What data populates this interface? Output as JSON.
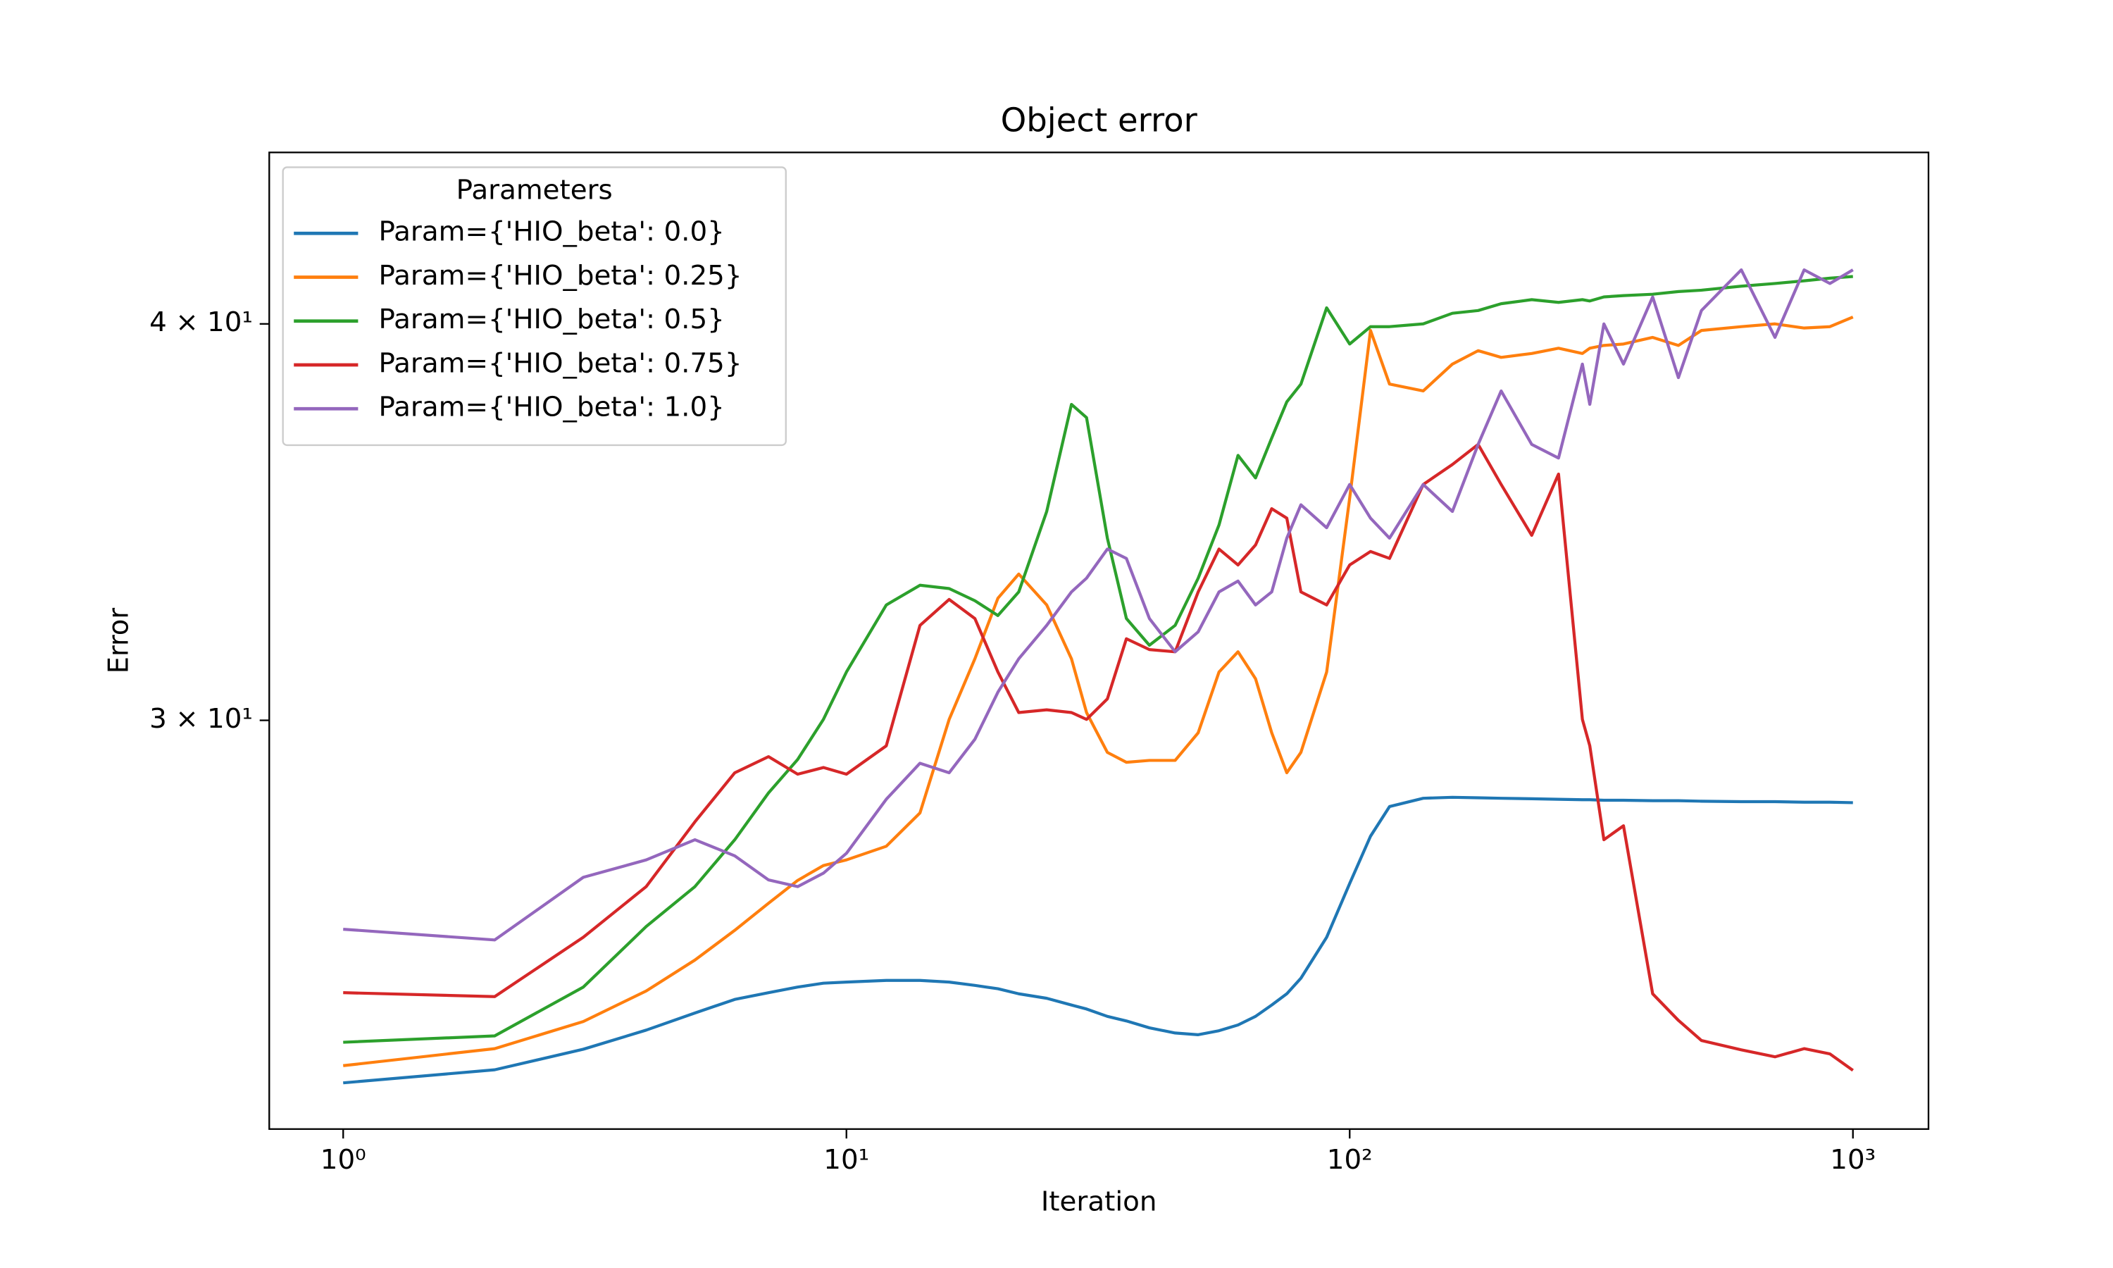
{
  "chart_data": {
    "type": "line",
    "title": "Object error",
    "xlabel": "Iteration",
    "ylabel": "Error",
    "xscale": "log",
    "yscale": "log",
    "legend_title": "Parameters",
    "legend": "upper left",
    "x": [
      1,
      2,
      3,
      4,
      5,
      6,
      7,
      8,
      9,
      10,
      12,
      14,
      16,
      18,
      20,
      22,
      25,
      28,
      30,
      33,
      36,
      40,
      45,
      50,
      55,
      60,
      65,
      70,
      75,
      80,
      90,
      100,
      110,
      120,
      140,
      160,
      180,
      200,
      230,
      260,
      290,
      300,
      320,
      350,
      400,
      450,
      500,
      600,
      700,
      800,
      900,
      1000
    ],
    "xlim": [
      0.713,
      1413
    ],
    "ylim": [
      22.3,
      45.3
    ],
    "xticks": [
      {
        "value": 1,
        "label": "10⁰"
      },
      {
        "value": 10,
        "label": "10¹"
      },
      {
        "value": 100,
        "label": "10²"
      },
      {
        "value": 1000,
        "label": "10³"
      }
    ],
    "yticks": [
      {
        "value": 30,
        "label": "3 × 10¹"
      },
      {
        "value": 40,
        "label": "4 × 10¹"
      }
    ],
    "series": [
      {
        "name": "Param={'HIO_beta': 0.0}",
        "color": "#1f77b4",
        "values": [
          23.06,
          23.28,
          23.63,
          23.96,
          24.26,
          24.5,
          24.62,
          24.72,
          24.79,
          24.81,
          24.84,
          24.84,
          24.81,
          24.75,
          24.69,
          24.6,
          24.52,
          24.4,
          24.33,
          24.2,
          24.12,
          24.0,
          23.91,
          23.88,
          23.95,
          24.05,
          24.2,
          24.4,
          24.6,
          24.88,
          25.63,
          26.65,
          27.58,
          28.18,
          28.35,
          28.37,
          28.36,
          28.35,
          28.34,
          28.33,
          28.32,
          28.32,
          28.31,
          28.31,
          28.3,
          28.3,
          28.29,
          28.28,
          28.28,
          28.27,
          28.27,
          28.26
        ]
      },
      {
        "name": "Param={'HIO_beta': 0.25}",
        "color": "#ff7f0e",
        "values": [
          23.35,
          23.64,
          24.11,
          24.65,
          25.21,
          25.76,
          26.27,
          26.71,
          27.0,
          27.11,
          27.38,
          28.05,
          30.02,
          31.37,
          32.78,
          33.36,
          32.62,
          31.37,
          30.17,
          29.31,
          29.1,
          29.14,
          29.14,
          29.73,
          31.07,
          31.53,
          30.92,
          29.73,
          28.88,
          29.31,
          31.07,
          35.25,
          39.81,
          38.29,
          38.1,
          38.85,
          39.23,
          39.04,
          39.15,
          39.3,
          39.15,
          39.3,
          39.38,
          39.42,
          39.61,
          39.38,
          39.81,
          39.92,
          40.0,
          39.88,
          39.92,
          40.2
        ]
      },
      {
        "name": "Param={'HIO_beta': 0.5}",
        "color": "#2ca02c",
        "values": [
          23.75,
          23.86,
          24.72,
          25.83,
          26.59,
          27.51,
          28.46,
          29.16,
          30.02,
          31.07,
          32.62,
          33.09,
          33.01,
          32.72,
          32.37,
          32.93,
          34.91,
          37.73,
          37.37,
          34.24,
          32.3,
          31.68,
          32.14,
          33.26,
          34.57,
          36.36,
          35.77,
          36.82,
          37.8,
          38.29,
          40.47,
          39.42,
          39.92,
          39.92,
          40.0,
          40.31,
          40.39,
          40.59,
          40.71,
          40.63,
          40.71,
          40.67,
          40.79,
          40.83,
          40.87,
          40.95,
          40.99,
          41.11,
          41.19,
          41.27,
          41.35,
          41.4
        ]
      },
      {
        "name": "Param={'HIO_beta': 0.75}",
        "color": "#d62728",
        "values": [
          24.62,
          24.55,
          25.63,
          26.59,
          27.87,
          28.88,
          29.22,
          28.85,
          28.99,
          28.85,
          29.45,
          32.14,
          32.75,
          32.3,
          31.07,
          30.17,
          30.23,
          30.17,
          30.02,
          30.47,
          31.83,
          31.58,
          31.53,
          32.93,
          33.97,
          33.58,
          34.07,
          34.98,
          34.74,
          32.93,
          32.62,
          33.58,
          33.91,
          33.74,
          35.6,
          36.12,
          36.65,
          35.6,
          34.31,
          35.87,
          30.02,
          29.45,
          27.51,
          27.79,
          24.6,
          24.13,
          23.78,
          23.62,
          23.5,
          23.64,
          23.55,
          23.27
        ]
      },
      {
        "name": "Param={'HIO_beta': 1.0}",
        "color": "#9467bd",
        "values": [
          25.78,
          25.58,
          26.77,
          27.11,
          27.51,
          27.19,
          26.72,
          26.59,
          26.85,
          27.24,
          28.33,
          29.08,
          28.88,
          29.59,
          30.62,
          31.37,
          32.14,
          32.93,
          33.26,
          33.97,
          33.74,
          32.3,
          31.53,
          31.99,
          32.93,
          33.19,
          32.62,
          32.93,
          34.24,
          35.08,
          34.5,
          35.6,
          34.74,
          34.24,
          35.6,
          34.91,
          36.65,
          38.1,
          36.65,
          36.29,
          38.85,
          37.73,
          40.0,
          38.85,
          40.79,
          38.47,
          40.39,
          41.6,
          39.61,
          41.6,
          41.19,
          41.6
        ]
      }
    ]
  }
}
